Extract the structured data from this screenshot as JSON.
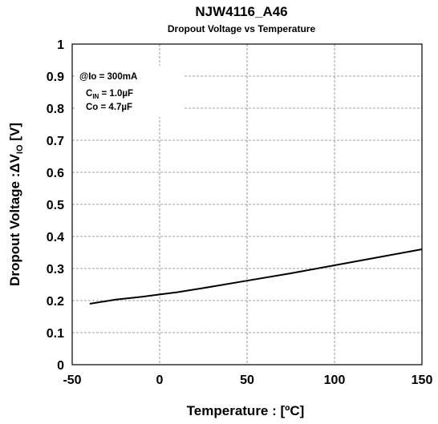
{
  "chart_data": {
    "type": "line",
    "title": "NJW4116_A46",
    "subtitle": "Dropout Voltage vs Temperature",
    "xlabel": "Temperature : [ºC]",
    "ylabel": {
      "main": "Dropout Voltage :",
      "delta": "Δ",
      "v": "V",
      "sub": "IO",
      "unit": " [V]"
    },
    "xlim": [
      -50,
      150
    ],
    "ylim": [
      0,
      1
    ],
    "xticks": [
      -50,
      0,
      50,
      100,
      150
    ],
    "yticks": [
      0,
      0.1,
      0.2,
      0.3,
      0.4,
      0.5,
      0.6,
      0.7,
      0.8,
      0.9,
      1
    ],
    "xtick_labels": [
      "-50",
      "0",
      "50",
      "100",
      "150"
    ],
    "ytick_labels": [
      "0",
      "0.1",
      "0.2",
      "0.3",
      "0.4",
      "0.5",
      "0.6",
      "0.7",
      "0.8",
      "0.9",
      "1"
    ],
    "grid": true,
    "conditions": [
      {
        "text": "@Io = 300mA"
      },
      {
        "pre": "C",
        "sub": "IN",
        "post": " = 1.0µF"
      },
      {
        "text": "Co = 4.7µF"
      }
    ],
    "series": [
      {
        "x": [
          -40,
          -25,
          -10,
          0,
          10,
          25,
          50,
          75,
          100,
          125,
          150
        ],
        "y": [
          0.19,
          0.203,
          0.212,
          0.219,
          0.226,
          0.239,
          0.262,
          0.285,
          0.31,
          0.335,
          0.36
        ]
      }
    ]
  }
}
